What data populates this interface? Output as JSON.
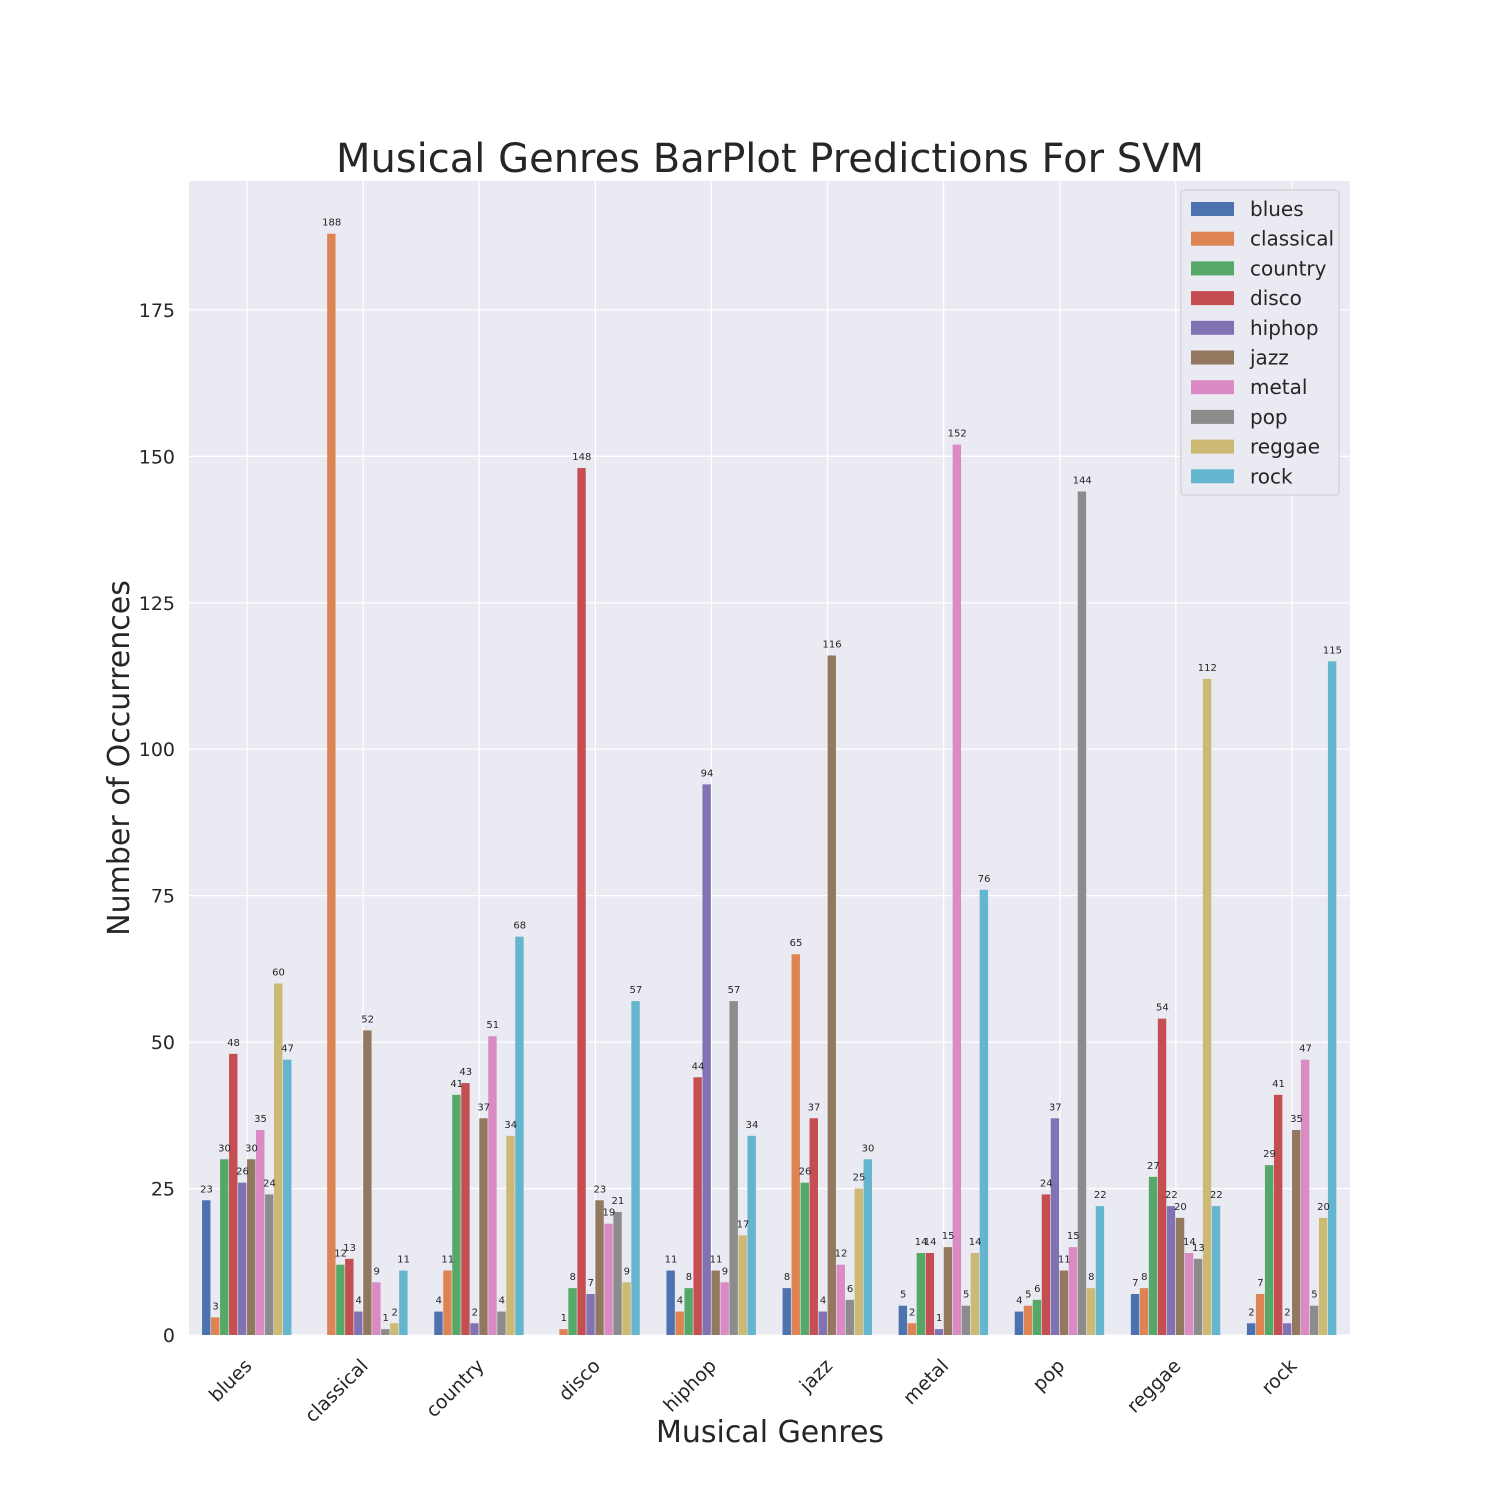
{
  "chart_data": {
    "type": "bar",
    "title": "Musical Genres BarPlot Predictions For SVM",
    "xlabel": "Musical Genres",
    "ylabel": "Number of Occurrences",
    "categories": [
      "blues",
      "classical",
      "country",
      "disco",
      "hiphop",
      "jazz",
      "metal",
      "pop",
      "reggae",
      "rock"
    ],
    "ylim": [
      0,
      197
    ],
    "yticks": [
      0,
      25,
      50,
      75,
      100,
      125,
      150,
      175
    ],
    "grid": true,
    "legend_position": "top-right",
    "series": [
      {
        "name": "blues",
        "color": "#4c72b0",
        "values": [
          23,
          0,
          4,
          0,
          11,
          8,
          5,
          4,
          7,
          2
        ]
      },
      {
        "name": "classical",
        "color": "#dd8452",
        "values": [
          3,
          188,
          11,
          1,
          4,
          65,
          2,
          5,
          8,
          7
        ]
      },
      {
        "name": "country",
        "color": "#55a868",
        "values": [
          30,
          12,
          41,
          8,
          8,
          26,
          14,
          6,
          27,
          29
        ]
      },
      {
        "name": "disco",
        "color": "#c44e52",
        "values": [
          48,
          13,
          43,
          148,
          44,
          37,
          14,
          24,
          54,
          41
        ]
      },
      {
        "name": "hiphop",
        "color": "#8172b3",
        "values": [
          26,
          4,
          2,
          7,
          94,
          4,
          1,
          37,
          22,
          2
        ]
      },
      {
        "name": "jazz",
        "color": "#937860",
        "values": [
          30,
          52,
          37,
          23,
          11,
          116,
          15,
          11,
          20,
          35
        ]
      },
      {
        "name": "metal",
        "color": "#da8bc3",
        "values": [
          35,
          9,
          51,
          19,
          9,
          12,
          152,
          15,
          14,
          47
        ]
      },
      {
        "name": "pop",
        "color": "#8c8c8c",
        "values": [
          24,
          1,
          4,
          21,
          57,
          6,
          5,
          144,
          13,
          5
        ]
      },
      {
        "name": "reggae",
        "color": "#ccb974",
        "values": [
          60,
          2,
          34,
          9,
          17,
          25,
          14,
          8,
          112,
          20
        ]
      },
      {
        "name": "rock",
        "color": "#64b5cd",
        "values": [
          47,
          11,
          68,
          57,
          34,
          30,
          76,
          22,
          22,
          115
        ]
      }
    ],
    "colors": {
      "plot_background": "#eaeaf2",
      "grid": "#ffffff"
    }
  }
}
